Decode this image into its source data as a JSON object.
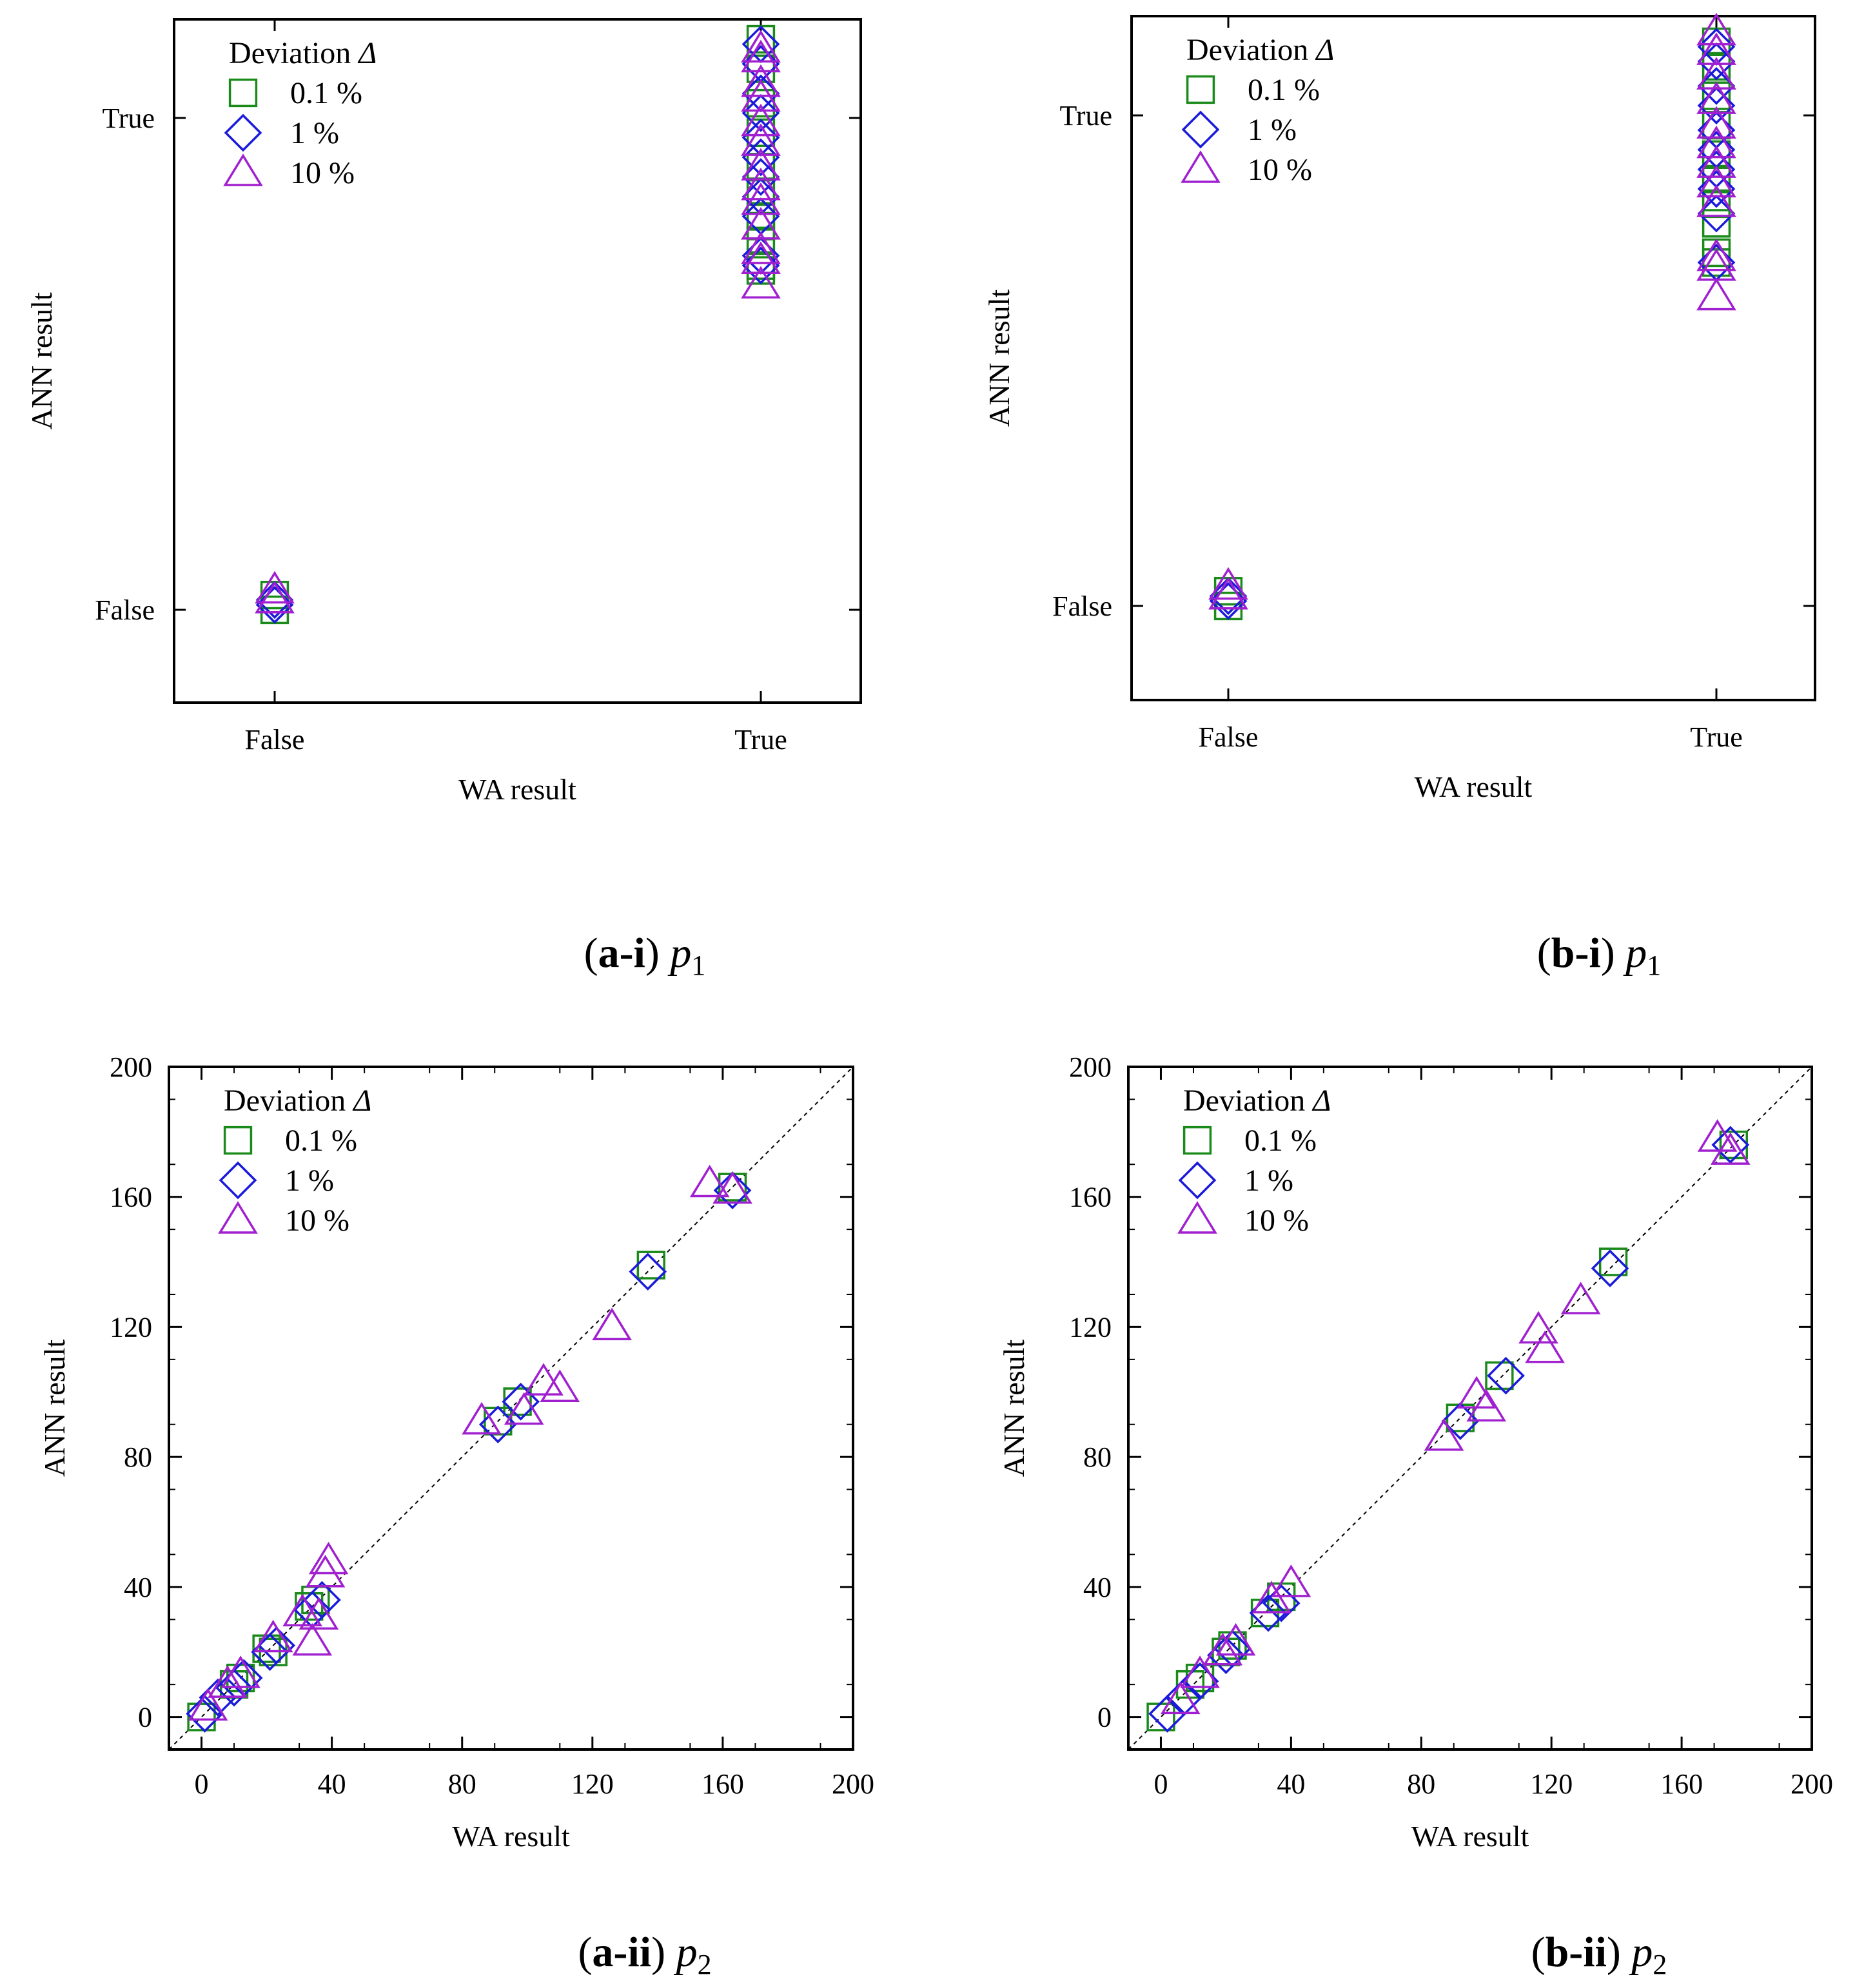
{
  "legend": {
    "title_text": "Deviation ",
    "title_symbol": "Δ",
    "entries": [
      {
        "label": "0.1 %",
        "marker": "square",
        "color": "#1a8a1a"
      },
      {
        "label": "1 %",
        "marker": "diamond",
        "color": "#1a1adb"
      },
      {
        "label": "10 %",
        "marker": "triangle",
        "color": "#a020d0"
      }
    ]
  },
  "chart_data": [
    {
      "type": "scatter",
      "caption": {
        "label": "a-i",
        "symbol": "p",
        "sub": "1"
      },
      "xlabel": "WA result",
      "ylabel": "ANN result",
      "categorical": true,
      "categories": [
        "False",
        "True"
      ],
      "grid": false,
      "legend_position": "top-left",
      "series": [
        {
          "name": "0.1 %",
          "points": [
            [
              0,
              0.0
            ],
            [
              0,
              0.03
            ],
            [
              1,
              1.16
            ],
            [
              1,
              1.1
            ],
            [
              1,
              1.03
            ],
            [
              1,
              0.97
            ],
            [
              1,
              0.9
            ],
            [
              1,
              0.85
            ],
            [
              1,
              0.8
            ],
            [
              1,
              0.78
            ],
            [
              1,
              0.75
            ],
            [
              1,
              0.69
            ],
            [
              1,
              0.7
            ]
          ]
        },
        {
          "name": "1 %",
          "points": [
            [
              0,
              0.01
            ],
            [
              0,
              0.02
            ],
            [
              1,
              1.15
            ],
            [
              1,
              1.11
            ],
            [
              1,
              1.05
            ],
            [
              1,
              1.01
            ],
            [
              1,
              0.96
            ],
            [
              1,
              0.92
            ],
            [
              1,
              0.88
            ],
            [
              1,
              0.84
            ],
            [
              1,
              0.8
            ],
            [
              1,
              0.72
            ],
            [
              1,
              0.7
            ]
          ]
        },
        {
          "name": "10 %",
          "points": [
            [
              0,
              0.02
            ],
            [
              0,
              0.04
            ],
            [
              1,
              1.14
            ],
            [
              1,
              1.12
            ],
            [
              1,
              1.07
            ],
            [
              1,
              1.04
            ],
            [
              1,
              0.99
            ],
            [
              1,
              0.95
            ],
            [
              1,
              0.9
            ],
            [
              1,
              0.86
            ],
            [
              1,
              0.83
            ],
            [
              1,
              0.78
            ],
            [
              1,
              0.73
            ],
            [
              1,
              0.71
            ],
            [
              1,
              0.66
            ]
          ]
        }
      ]
    },
    {
      "type": "scatter",
      "caption": {
        "label": "b-i",
        "symbol": "p",
        "sub": "1"
      },
      "xlabel": "WA result",
      "ylabel": "ANN result",
      "categorical": true,
      "categories": [
        "False",
        "True"
      ],
      "grid": false,
      "legend_position": "top-left",
      "series": [
        {
          "name": "0.1 %",
          "points": [
            [
              0,
              0.0
            ],
            [
              0,
              0.03
            ],
            [
              1,
              1.15
            ],
            [
              1,
              1.1
            ],
            [
              1,
              1.04
            ],
            [
              1,
              0.98
            ],
            [
              1,
              0.92
            ],
            [
              1,
              0.87
            ],
            [
              1,
              0.82
            ],
            [
              1,
              0.78
            ],
            [
              1,
              0.72
            ],
            [
              1,
              0.7
            ]
          ]
        },
        {
          "name": "1 %",
          "points": [
            [
              0,
              0.01
            ],
            [
              0,
              0.02
            ],
            [
              1,
              1.14
            ],
            [
              1,
              1.11
            ],
            [
              1,
              1.06
            ],
            [
              1,
              1.02
            ],
            [
              1,
              0.97
            ],
            [
              1,
              0.93
            ],
            [
              1,
              0.89
            ],
            [
              1,
              0.85
            ],
            [
              1,
              0.8
            ],
            [
              1,
              0.7
            ]
          ]
        },
        {
          "name": "10 %",
          "points": [
            [
              0,
              0.02
            ],
            [
              0,
              0.04
            ],
            [
              1,
              1.17
            ],
            [
              1,
              1.13
            ],
            [
              1,
              1.08
            ],
            [
              1,
              1.03
            ],
            [
              1,
              0.98
            ],
            [
              1,
              0.94
            ],
            [
              1,
              0.9
            ],
            [
              1,
              0.86
            ],
            [
              1,
              0.82
            ],
            [
              1,
              0.71
            ],
            [
              1,
              0.69
            ],
            [
              1,
              0.63
            ]
          ]
        }
      ]
    },
    {
      "type": "scatter",
      "caption": {
        "label": "a-ii",
        "symbol": "p",
        "sub": "2"
      },
      "xlabel": "WA result",
      "ylabel": "ANN result",
      "xlim": [
        -10,
        200
      ],
      "ylim": [
        -10,
        200
      ],
      "xticks": [
        0,
        40,
        80,
        120,
        160,
        200
      ],
      "yticks": [
        0,
        40,
        80,
        120,
        160,
        200
      ],
      "diagonal": true,
      "grid": false,
      "legend_position": "top-left",
      "series": [
        {
          "name": "0.1 %",
          "points": [
            [
              0,
              0
            ],
            [
              10,
              10
            ],
            [
              12,
              12
            ],
            [
              20,
              21
            ],
            [
              22,
              20
            ],
            [
              33,
              34
            ],
            [
              35,
              36
            ],
            [
              91,
              91
            ],
            [
              97,
              97
            ],
            [
              138,
              139
            ],
            [
              163,
              163
            ]
          ]
        },
        {
          "name": "1 %",
          "points": [
            [
              1,
              1
            ],
            [
              5,
              6
            ],
            [
              10,
              9
            ],
            [
              13,
              12
            ],
            [
              21,
              20
            ],
            [
              23,
              22
            ],
            [
              34,
              33
            ],
            [
              37,
              36
            ],
            [
              91,
              90
            ],
            [
              98,
              97
            ],
            [
              137,
              137
            ],
            [
              163,
              162
            ]
          ]
        },
        {
          "name": "10 %",
          "points": [
            [
              2,
              3
            ],
            [
              8,
              10
            ],
            [
              12,
              13
            ],
            [
              22,
              24
            ],
            [
              31,
              32
            ],
            [
              34,
              23
            ],
            [
              36,
              31
            ],
            [
              39,
              48
            ],
            [
              38,
              44
            ],
            [
              86,
              91
            ],
            [
              99,
              94
            ],
            [
              105,
              103
            ],
            [
              110,
              101
            ],
            [
              126,
              120
            ],
            [
              156,
              164
            ],
            [
              163,
              162
            ]
          ]
        }
      ]
    },
    {
      "type": "scatter",
      "caption": {
        "label": "b-ii",
        "symbol": "p",
        "sub": "2"
      },
      "xlabel": "WA result",
      "ylabel": "ANN result",
      "xlim": [
        -10,
        200
      ],
      "ylim": [
        -10,
        200
      ],
      "xticks": [
        0,
        40,
        80,
        120,
        160,
        200
      ],
      "yticks": [
        0,
        40,
        80,
        120,
        160,
        200
      ],
      "diagonal": true,
      "grid": false,
      "legend_position": "top-left",
      "series": [
        {
          "name": "0.1 %",
          "points": [
            [
              0,
              0
            ],
            [
              9,
              10
            ],
            [
              12,
              12
            ],
            [
              20,
              20
            ],
            [
              22,
              22
            ],
            [
              32,
              32
            ],
            [
              37,
              37
            ],
            [
              92,
              92
            ],
            [
              104,
              105
            ],
            [
              139,
              140
            ],
            [
              176,
              176
            ]
          ]
        },
        {
          "name": "1 %",
          "points": [
            [
              2,
              1
            ],
            [
              7,
              6
            ],
            [
              12,
              11
            ],
            [
              20,
              19
            ],
            [
              22,
              21
            ],
            [
              33,
              32
            ],
            [
              37,
              35
            ],
            [
              92,
              91
            ],
            [
              106,
              105
            ],
            [
              138,
              138
            ],
            [
              175,
              176
            ]
          ]
        },
        {
          "name": "10 %",
          "points": [
            [
              6,
              5
            ],
            [
              12,
              13
            ],
            [
              19,
              20
            ],
            [
              23,
              23
            ],
            [
              34,
              36
            ],
            [
              40,
              41
            ],
            [
              87,
              86
            ],
            [
              100,
              95
            ],
            [
              97,
              99
            ],
            [
              116,
              119
            ],
            [
              118,
              113
            ],
            [
              129,
              128
            ],
            [
              171,
              178
            ],
            [
              175,
              174
            ]
          ]
        }
      ]
    }
  ]
}
